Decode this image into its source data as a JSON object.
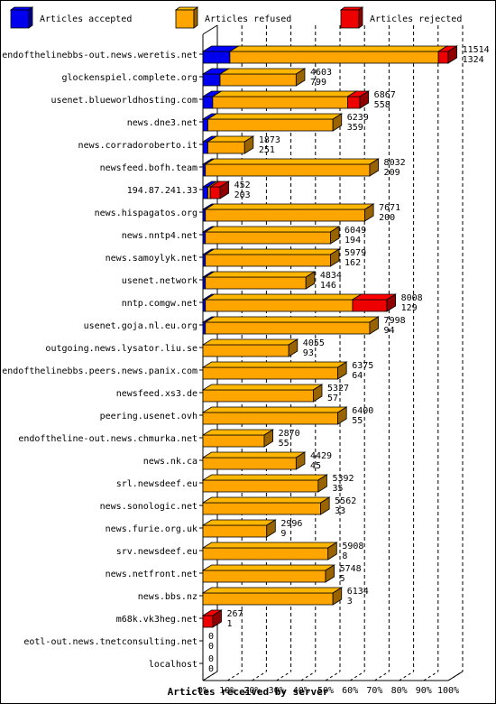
{
  "chart_data": {
    "type": "bar",
    "stacked": true,
    "orientation": "horizontal",
    "xlabel": "Articles received by server",
    "x_ticks": [
      "0%",
      "10%",
      "20%",
      "30%",
      "40%",
      "50%",
      "60%",
      "70%",
      "80%",
      "90%",
      "100%"
    ],
    "xlim": [
      0,
      100
    ],
    "legend_position": "top",
    "categories": [
      "endofthelinebbs-out.news.weretis.net",
      "glockenspiel.complete.org",
      "usenet.blueworldhosting.com",
      "news.dne3.net",
      "news.corradoroberto.it",
      "newsfeed.bofh.team",
      "194.87.241.33",
      "news.hispagatos.org",
      "news.nntp4.net",
      "news.samoylyk.net",
      "usenet.network",
      "nntp.comgw.net",
      "usenet.goja.nl.eu.org",
      "outgoing.news.lysator.liu.se",
      "endofthelinebbs.peers.news.panix.com",
      "newsfeed.xs3.de",
      "peering.usenet.ovh",
      "endoftheline-out.news.chmurka.net",
      "news.nk.ca",
      "srl.newsdeef.eu",
      "news.sonologic.net",
      "news.furie.org.uk",
      "srv.newsdeef.eu",
      "news.netfront.net",
      "news.bbs.nz",
      "m68k.vk3heg.net",
      "eotl-out.news.tnetconsulting.net",
      "localhost"
    ],
    "labels_top": [
      "11514",
      "4603",
      "6867",
      "6239",
      "1873",
      "8032",
      "452",
      "7671",
      "6049",
      "5979",
      "4834",
      "8008",
      "7998",
      "4055",
      "6375",
      "5327",
      "6400",
      "2870",
      "4429",
      "5392",
      "5562",
      "2996",
      "5908",
      "5748",
      "6134",
      "267",
      "0",
      "0"
    ],
    "labels_bottom": [
      "1324",
      "799",
      "558",
      "359",
      "251",
      "209",
      "203",
      "200",
      "194",
      "162",
      "146",
      "129",
      "94",
      "93",
      "64",
      "57",
      "55",
      "55",
      "45",
      "35",
      "33",
      "9",
      "8",
      "5",
      "3",
      "1",
      "0",
      "0"
    ],
    "series": [
      {
        "name": "Articles accepted",
        "color": "#0000ee",
        "values": [
          11,
          7,
          4,
          2,
          2,
          1,
          2,
          1,
          1,
          1,
          1,
          1,
          1,
          0,
          0,
          0,
          0,
          0,
          0,
          0,
          0,
          0,
          0,
          0,
          0,
          0,
          0,
          0
        ]
      },
      {
        "name": "Articles refused",
        "color": "#ffa500",
        "values": [
          85,
          31,
          55,
          51,
          15,
          67,
          1,
          65,
          51,
          51,
          41,
          60,
          67,
          35,
          55,
          45,
          55,
          25,
          38,
          47,
          48,
          26,
          51,
          50,
          53,
          0,
          0,
          0
        ]
      },
      {
        "name": "Articles rejected",
        "color": "#ee0000",
        "values": [
          4,
          0,
          5,
          0,
          0,
          0,
          4,
          0,
          0,
          0,
          0,
          14,
          0,
          0,
          0,
          0,
          0,
          0,
          0,
          0,
          0,
          0,
          0,
          0,
          0,
          4,
          0,
          0
        ]
      }
    ]
  }
}
